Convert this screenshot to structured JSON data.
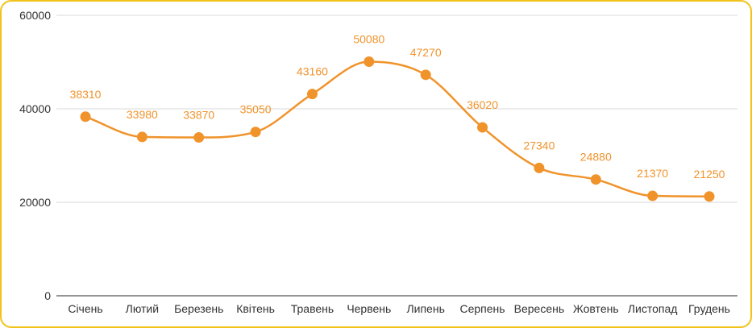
{
  "chart_data": {
    "type": "line",
    "categories": [
      "Січень",
      "Лютий",
      "Березень",
      "Квітень",
      "Травень",
      "Червень",
      "Липень",
      "Серпень",
      "Вересень",
      "Жовтень",
      "Листопад",
      "Грудень"
    ],
    "series": [
      {
        "values": [
          38310,
          33980,
          33870,
          35050,
          43160,
          50080,
          47270,
          36020,
          27340,
          24880,
          21370,
          21250
        ]
      }
    ],
    "ylim": [
      0,
      60000
    ],
    "yticks": [
      0,
      20000,
      40000,
      60000
    ],
    "grid": true,
    "smooth": true,
    "data_labels": true,
    "colors": {
      "line": "#f0932b",
      "label": "#f0932b",
      "grid": "#d9d9d9",
      "frame": "#f2c21b"
    }
  }
}
